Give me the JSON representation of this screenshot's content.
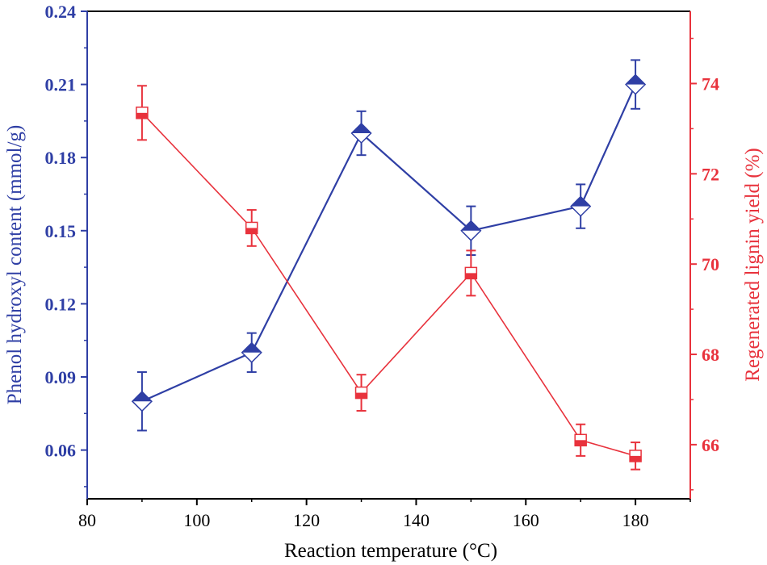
{
  "chart_data": {
    "type": "line",
    "xlabel": "Reaction temperature (°C)",
    "xlim": [
      80,
      190
    ],
    "xticks": [
      "80",
      "100",
      "120",
      "140",
      "160",
      "180"
    ],
    "x": [
      90,
      110,
      130,
      150,
      170,
      180
    ],
    "y_left": {
      "label": "Phenol hydroxyl content (mmol/g)",
      "lim": [
        0.04,
        0.24
      ],
      "ticks": [
        "0.06",
        "0.09",
        "0.12",
        "0.15",
        "0.18",
        "0.21",
        "0.24"
      ],
      "color": "#2f3fa5"
    },
    "y_right": {
      "label": "Regenerated lignin yield (%)",
      "lim": [
        64.8,
        75.6
      ],
      "ticks": [
        "66",
        "68",
        "70",
        "72",
        "74"
      ],
      "color": "#e8323c"
    },
    "series": [
      {
        "axis": "left",
        "marker": "diamond",
        "color": "#2f3fa5",
        "values": [
          0.08,
          0.1,
          0.19,
          0.15,
          0.16,
          0.21
        ],
        "errors": [
          0.012,
          0.008,
          0.009,
          0.01,
          0.009,
          0.01
        ]
      },
      {
        "axis": "right",
        "marker": "square",
        "color": "#e8323c",
        "values": [
          73.35,
          70.8,
          67.15,
          69.8,
          66.1,
          65.75
        ],
        "errors": [
          0.6,
          0.4,
          0.4,
          0.5,
          0.35,
          0.3
        ]
      }
    ]
  }
}
